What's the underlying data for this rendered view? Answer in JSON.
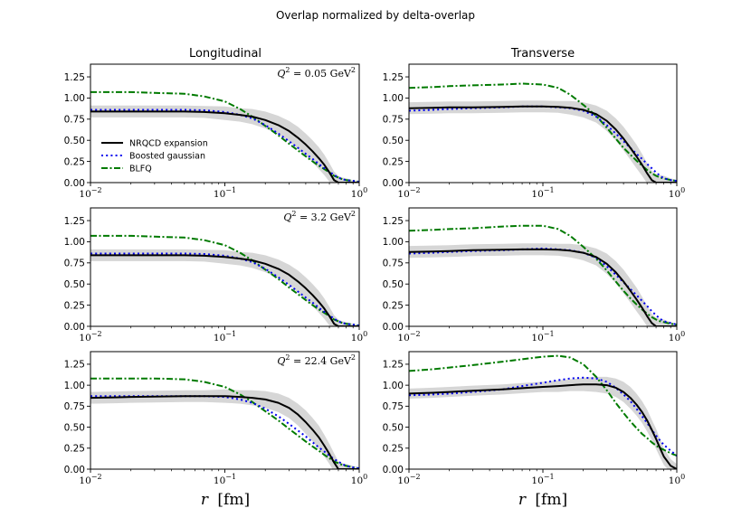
{
  "chart_data": {
    "type": "line",
    "title": "Overlap normalized by delta-overlap",
    "column_titles": [
      "Longitudinal",
      "Transverse"
    ],
    "xlabel_var": "r",
    "xlabel_unit": "[fm]",
    "xscale": "log",
    "xlim": [
      0.01,
      1.0
    ],
    "ylim": [
      0.0,
      1.4
    ],
    "yticks": [
      "0.00",
      "0.25",
      "0.50",
      "0.75",
      "1.00",
      "1.25"
    ],
    "xticks": [
      {
        "value": 0.01,
        "base": "10",
        "exp": "−2"
      },
      {
        "value": 0.1,
        "base": "10",
        "exp": "−1"
      },
      {
        "value": 1.0,
        "base": "10",
        "exp": "0"
      }
    ],
    "annotation_prefix": "Q",
    "annotation_unit": "GeV",
    "legend": {
      "location": "center-left",
      "entries": [
        {
          "label": "NRQCD expansion",
          "color": "#000000",
          "style": "solid"
        },
        {
          "label": "Boosted gaussian",
          "color": "#0000ee",
          "style": "dotted"
        },
        {
          "label": "BLFQ",
          "color": "#007a00",
          "style": "dashdot"
        }
      ]
    },
    "r_grid": [
      0.01,
      0.015,
      0.02,
      0.03,
      0.05,
      0.07,
      0.1,
      0.13,
      0.16,
      0.2,
      0.25,
      0.3,
      0.35,
      0.4,
      0.45,
      0.5,
      0.55,
      0.6,
      0.65,
      0.7,
      0.75,
      0.8,
      0.9,
      1.0
    ],
    "panels": [
      {
        "row": 0,
        "col": 0,
        "q2": "0.05",
        "nrqcd": [
          0.84,
          0.84,
          0.84,
          0.84,
          0.84,
          0.835,
          0.82,
          0.8,
          0.78,
          0.74,
          0.68,
          0.61,
          0.53,
          0.45,
          0.37,
          0.29,
          0.21,
          0.12,
          0.03,
          0.0,
          0.0,
          0.0,
          0.0,
          0.0
        ],
        "band": [
          0.07,
          0.07,
          0.07,
          0.07,
          0.07,
          0.07,
          0.08,
          0.08,
          0.09,
          0.1,
          0.11,
          0.12,
          0.13,
          0.13,
          0.13,
          0.13,
          0.12,
          0.11,
          0.1,
          0.08,
          0.06,
          0.05,
          0.03,
          0.02
        ],
        "boosted": [
          0.86,
          0.86,
          0.86,
          0.86,
          0.86,
          0.855,
          0.835,
          0.8,
          0.76,
          0.68,
          0.58,
          0.49,
          0.41,
          0.34,
          0.28,
          0.22,
          0.17,
          0.13,
          0.09,
          0.06,
          0.04,
          0.03,
          0.02,
          0.01
        ],
        "blfq": [
          1.07,
          1.07,
          1.07,
          1.06,
          1.05,
          1.02,
          0.96,
          0.87,
          0.78,
          0.67,
          0.56,
          0.46,
          0.38,
          0.31,
          0.25,
          0.2,
          0.16,
          0.12,
          0.08,
          0.06,
          0.04,
          0.03,
          0.02,
          0.01
        ]
      },
      {
        "row": 0,
        "col": 1,
        "q2": "",
        "nrqcd": [
          0.88,
          0.885,
          0.89,
          0.89,
          0.895,
          0.9,
          0.9,
          0.895,
          0.885,
          0.86,
          0.81,
          0.73,
          0.63,
          0.52,
          0.41,
          0.31,
          0.21,
          0.11,
          0.03,
          0.0,
          0.0,
          0.0,
          0.0,
          0.0
        ],
        "band": [
          0.07,
          0.07,
          0.07,
          0.07,
          0.07,
          0.07,
          0.07,
          0.07,
          0.08,
          0.09,
          0.1,
          0.12,
          0.13,
          0.14,
          0.14,
          0.14,
          0.13,
          0.12,
          0.11,
          0.1,
          0.09,
          0.08,
          0.05,
          0.03
        ],
        "boosted": [
          0.85,
          0.86,
          0.87,
          0.88,
          0.89,
          0.9,
          0.9,
          0.89,
          0.88,
          0.85,
          0.78,
          0.68,
          0.58,
          0.49,
          0.41,
          0.34,
          0.28,
          0.22,
          0.17,
          0.12,
          0.08,
          0.05,
          0.03,
          0.02
        ],
        "blfq": [
          1.12,
          1.13,
          1.14,
          1.15,
          1.16,
          1.17,
          1.16,
          1.12,
          1.04,
          0.92,
          0.79,
          0.65,
          0.52,
          0.41,
          0.33,
          0.26,
          0.2,
          0.15,
          0.11,
          0.08,
          0.06,
          0.05,
          0.03,
          0.02
        ]
      },
      {
        "row": 1,
        "col": 0,
        "q2": "3.2",
        "nrqcd": [
          0.84,
          0.84,
          0.84,
          0.84,
          0.84,
          0.835,
          0.82,
          0.8,
          0.78,
          0.74,
          0.68,
          0.61,
          0.53,
          0.45,
          0.37,
          0.29,
          0.21,
          0.12,
          0.03,
          0.0,
          0.0,
          0.0,
          0.0,
          0.0
        ],
        "band": [
          0.07,
          0.07,
          0.07,
          0.07,
          0.07,
          0.07,
          0.08,
          0.08,
          0.09,
          0.1,
          0.11,
          0.12,
          0.13,
          0.13,
          0.13,
          0.13,
          0.12,
          0.11,
          0.1,
          0.08,
          0.06,
          0.05,
          0.03,
          0.02
        ],
        "boosted": [
          0.86,
          0.86,
          0.86,
          0.86,
          0.86,
          0.855,
          0.835,
          0.8,
          0.76,
          0.68,
          0.58,
          0.49,
          0.41,
          0.34,
          0.28,
          0.22,
          0.17,
          0.13,
          0.09,
          0.06,
          0.04,
          0.03,
          0.02,
          0.01
        ],
        "blfq": [
          1.07,
          1.07,
          1.07,
          1.06,
          1.05,
          1.02,
          0.96,
          0.87,
          0.78,
          0.67,
          0.56,
          0.46,
          0.38,
          0.31,
          0.25,
          0.2,
          0.16,
          0.12,
          0.08,
          0.06,
          0.04,
          0.03,
          0.02,
          0.01
        ]
      },
      {
        "row": 1,
        "col": 1,
        "q2": "",
        "nrqcd": [
          0.88,
          0.885,
          0.89,
          0.9,
          0.905,
          0.91,
          0.91,
          0.905,
          0.895,
          0.87,
          0.82,
          0.74,
          0.64,
          0.53,
          0.42,
          0.32,
          0.22,
          0.12,
          0.04,
          0.0,
          0.0,
          0.0,
          0.0,
          0.0
        ],
        "band": [
          0.07,
          0.07,
          0.07,
          0.07,
          0.07,
          0.07,
          0.07,
          0.07,
          0.08,
          0.09,
          0.1,
          0.12,
          0.13,
          0.14,
          0.14,
          0.14,
          0.13,
          0.12,
          0.11,
          0.1,
          0.09,
          0.08,
          0.05,
          0.03
        ],
        "boosted": [
          0.86,
          0.87,
          0.88,
          0.89,
          0.9,
          0.91,
          0.92,
          0.91,
          0.9,
          0.87,
          0.81,
          0.71,
          0.61,
          0.52,
          0.44,
          0.37,
          0.3,
          0.24,
          0.18,
          0.13,
          0.09,
          0.06,
          0.04,
          0.02
        ],
        "blfq": [
          1.13,
          1.14,
          1.15,
          1.16,
          1.18,
          1.19,
          1.19,
          1.15,
          1.07,
          0.94,
          0.8,
          0.66,
          0.53,
          0.42,
          0.33,
          0.26,
          0.2,
          0.15,
          0.11,
          0.08,
          0.06,
          0.05,
          0.03,
          0.02
        ]
      },
      {
        "row": 2,
        "col": 0,
        "q2": "22.4",
        "nrqcd": [
          0.85,
          0.855,
          0.86,
          0.865,
          0.87,
          0.87,
          0.87,
          0.86,
          0.85,
          0.83,
          0.79,
          0.73,
          0.65,
          0.56,
          0.47,
          0.38,
          0.28,
          0.18,
          0.08,
          0.0,
          0.0,
          0.0,
          0.0,
          0.0
        ],
        "band": [
          0.07,
          0.07,
          0.07,
          0.07,
          0.07,
          0.07,
          0.08,
          0.08,
          0.09,
          0.1,
          0.11,
          0.12,
          0.13,
          0.14,
          0.14,
          0.14,
          0.13,
          0.12,
          0.11,
          0.09,
          0.07,
          0.06,
          0.04,
          0.02
        ],
        "boosted": [
          0.87,
          0.87,
          0.87,
          0.87,
          0.87,
          0.87,
          0.86,
          0.83,
          0.79,
          0.72,
          0.63,
          0.54,
          0.46,
          0.39,
          0.32,
          0.26,
          0.21,
          0.16,
          0.12,
          0.09,
          0.06,
          0.04,
          0.02,
          0.01
        ],
        "blfq": [
          1.08,
          1.08,
          1.08,
          1.08,
          1.07,
          1.04,
          0.98,
          0.89,
          0.8,
          0.69,
          0.58,
          0.48,
          0.4,
          0.33,
          0.27,
          0.22,
          0.17,
          0.13,
          0.09,
          0.07,
          0.05,
          0.04,
          0.02,
          0.01
        ]
      },
      {
        "row": 2,
        "col": 1,
        "q2": "",
        "nrqcd": [
          0.9,
          0.91,
          0.92,
          0.935,
          0.95,
          0.965,
          0.98,
          0.99,
          1.0,
          1.01,
          1.01,
          1.0,
          0.97,
          0.92,
          0.85,
          0.77,
          0.68,
          0.58,
          0.47,
          0.36,
          0.25,
          0.15,
          0.04,
          0.0
        ],
        "band": [
          0.06,
          0.06,
          0.06,
          0.06,
          0.06,
          0.06,
          0.06,
          0.07,
          0.07,
          0.08,
          0.09,
          0.1,
          0.11,
          0.12,
          0.13,
          0.13,
          0.13,
          0.13,
          0.12,
          0.12,
          0.11,
          0.1,
          0.08,
          0.06
        ],
        "boosted": [
          0.88,
          0.89,
          0.9,
          0.92,
          0.95,
          0.99,
          1.03,
          1.06,
          1.08,
          1.09,
          1.08,
          1.04,
          0.97,
          0.89,
          0.81,
          0.72,
          0.63,
          0.55,
          0.47,
          0.4,
          0.34,
          0.29,
          0.22,
          0.16
        ],
        "blfq": [
          1.17,
          1.19,
          1.21,
          1.24,
          1.28,
          1.31,
          1.34,
          1.35,
          1.33,
          1.25,
          1.1,
          0.94,
          0.79,
          0.67,
          0.57,
          0.49,
          0.42,
          0.37,
          0.32,
          0.28,
          0.25,
          0.23,
          0.19,
          0.16
        ]
      }
    ]
  }
}
